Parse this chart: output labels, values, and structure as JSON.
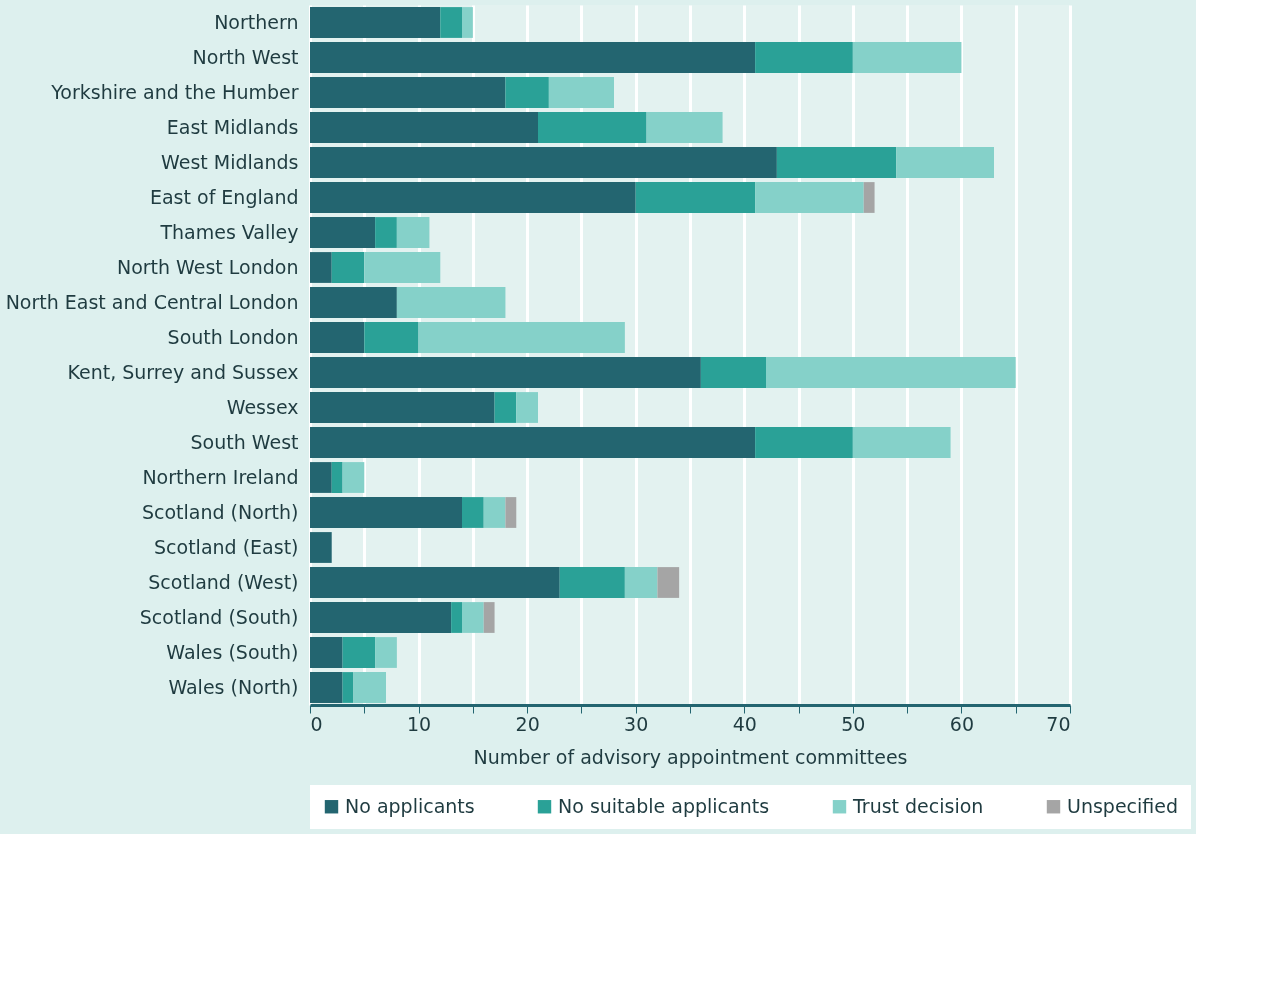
{
  "chart_data": {
    "type": "bar",
    "orientation": "horizontal",
    "stacked": true,
    "xlabel": "Number of advisory appointment committees",
    "categories": [
      "Northern",
      "North West",
      "Yorkshire and the Humber",
      "East Midlands",
      "West Midlands",
      "East of England",
      "Thames Valley",
      "North West London",
      "North East and Central London",
      "South London",
      "Kent, Surrey and Sussex",
      "Wessex",
      "South West",
      "Northern Ireland",
      "Scotland (North)",
      "Scotland (East)",
      "Scotland (West)",
      "Scotland (South)",
      "Wales (South)",
      "Wales (North)"
    ],
    "series": [
      {
        "name": "No applicants",
        "color": "#236570",
        "values": [
          12,
          41,
          18,
          21,
          43,
          30,
          6,
          2,
          8,
          5,
          36,
          17,
          41,
          2,
          14,
          2,
          23,
          13,
          3,
          3
        ]
      },
      {
        "name": "No suitable applicants",
        "color": "#2aa197",
        "values": [
          2,
          9,
          4,
          10,
          11,
          11,
          2,
          3,
          null,
          5,
          6,
          2,
          9,
          1,
          2,
          null,
          6,
          1,
          3,
          1
        ]
      },
      {
        "name": "Trust decision",
        "color": "#85d1c9",
        "values": [
          1,
          10,
          6,
          7,
          9,
          10,
          3,
          7,
          10,
          19,
          23,
          2,
          9,
          2,
          2,
          null,
          3,
          2,
          2,
          3
        ]
      },
      {
        "name": "Unspecified",
        "color": "#a5a5a5",
        "values": [
          null,
          null,
          null,
          null,
          null,
          1,
          null,
          null,
          null,
          null,
          null,
          null,
          null,
          null,
          1,
          null,
          2,
          1,
          null,
          null
        ]
      }
    ],
    "xlim": [
      0,
      70
    ],
    "xticks": [
      0,
      {
        "value": 5,
        "label": null
      },
      10,
      {
        "value": 15,
        "label": null
      },
      20,
      {
        "value": 25,
        "label": null
      },
      30,
      {
        "value": 35,
        "label": null
      },
      40,
      {
        "value": 45,
        "label": null
      },
      50,
      {
        "value": 55,
        "label": null
      },
      60,
      {
        "value": 65,
        "label": null
      },
      70
    ],
    "grid": "x",
    "legend": "bottom"
  }
}
